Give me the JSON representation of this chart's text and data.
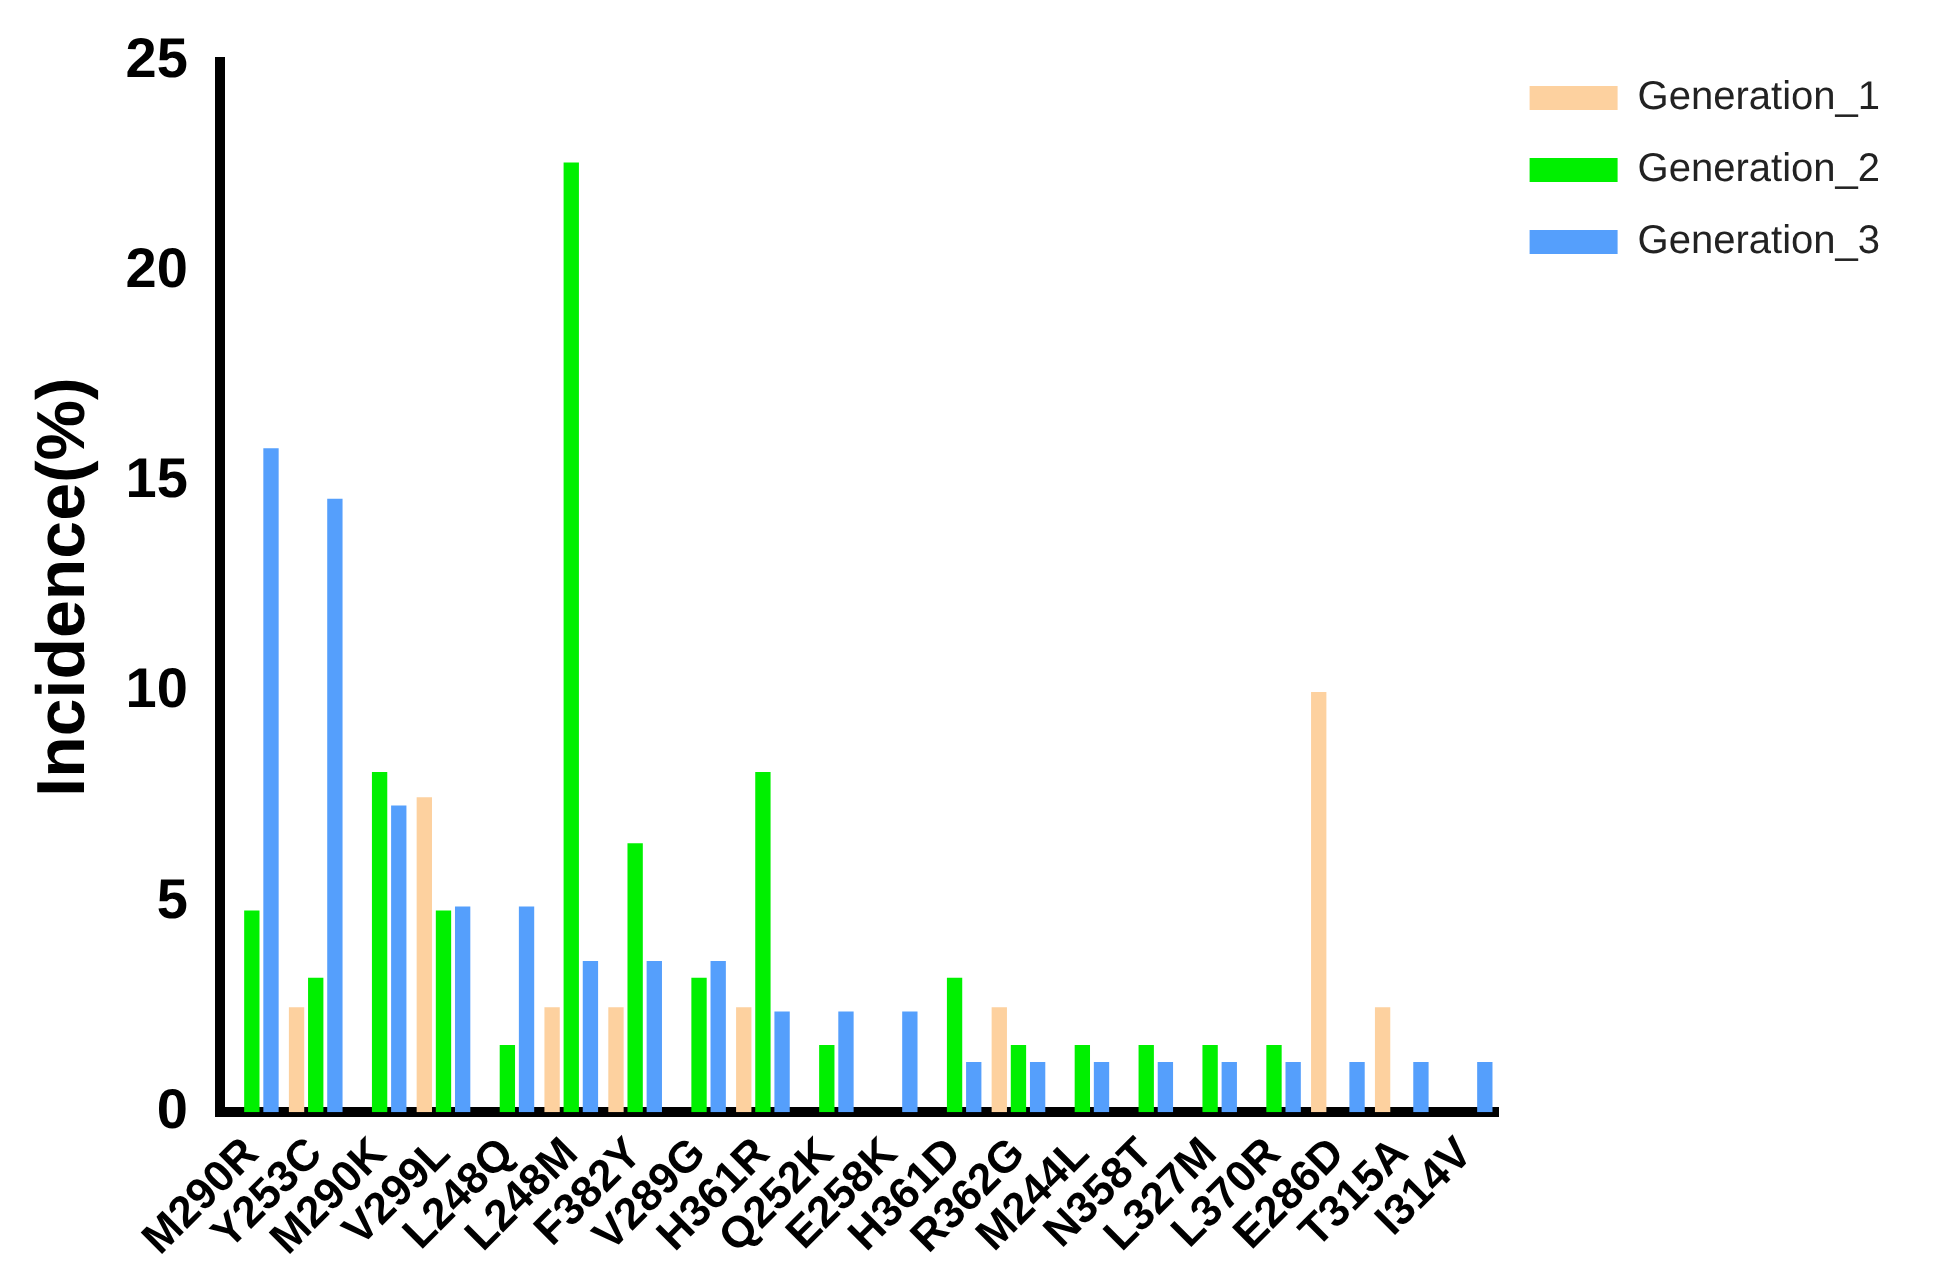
{
  "chart_data": {
    "type": "bar",
    "ylabel": "Incidence(%)",
    "categories": [
      "M290R",
      "Y253C",
      "M290K",
      "V299L",
      "L248Q",
      "L248M",
      "F382Y",
      "V289G",
      "H361R",
      "Q252K",
      "E258K",
      "H361D",
      "R362G",
      "M244L",
      "N358T",
      "L327M",
      "L370R",
      "E286D",
      "T315A",
      "I314V"
    ],
    "series": [
      {
        "name": "Generation_1",
        "color": "#fdd19f",
        "values": [
          null,
          2.5,
          null,
          7.5,
          null,
          2.5,
          2.5,
          null,
          2.5,
          null,
          null,
          null,
          2.5,
          null,
          null,
          null,
          null,
          10,
          2.5,
          null
        ]
      },
      {
        "name": "Generation_2",
        "color": "#00f000",
        "values": [
          4.8,
          3.2,
          8.1,
          4.8,
          1.6,
          22.6,
          6.4,
          3.2,
          8.1,
          1.6,
          null,
          3.2,
          1.6,
          1.6,
          1.6,
          1.6,
          1.6,
          null,
          null,
          null
        ]
      },
      {
        "name": "Generation_3",
        "color": "#559ffc",
        "values": [
          15.8,
          14.6,
          7.3,
          4.9,
          4.9,
          3.6,
          3.6,
          3.6,
          2.4,
          2.4,
          2.4,
          1.2,
          1.2,
          1.2,
          1.2,
          1.2,
          1.2,
          1.2,
          1.2,
          1.2
        ]
      }
    ],
    "ylim": [
      0,
      25
    ],
    "yticks": [
      0,
      5,
      10,
      15,
      20,
      25
    ],
    "grid": false,
    "legend": "top right"
  }
}
